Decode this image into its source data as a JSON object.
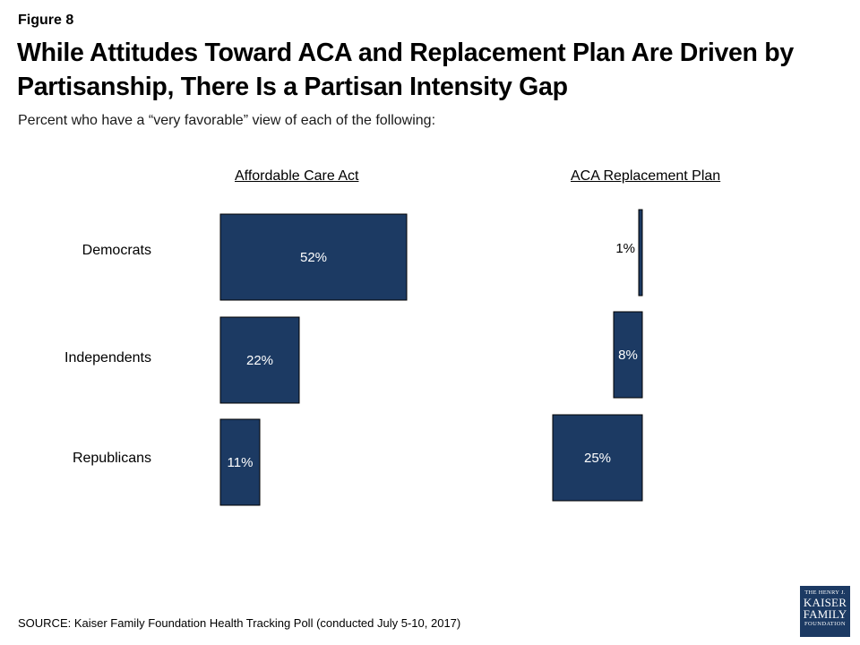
{
  "figure_label": "Figure 8",
  "title": "While Attitudes Toward ACA and Replacement Plan Are Driven by Partisanship, There Is a Partisan Intensity Gap",
  "subtitle": "Percent who have a “very favorable” view of each of the following:",
  "source": "SOURCE: Kaiser Family Foundation Health Tracking Poll (conducted July 5-10, 2017)",
  "logo": {
    "line1": "THE HENRY J.",
    "line2": "KAISER",
    "line3": "FAMILY",
    "line4": "FOUNDATION"
  },
  "colors": {
    "bar": "#1c3a63",
    "bar_label": "#ffffff",
    "outside_label": "#000000"
  },
  "chart_data": [
    {
      "type": "bar",
      "orientation": "horizontal",
      "direction": "left-to-right",
      "title": "Affordable Care Act",
      "categories": [
        "Democrats",
        "Independents",
        "Republicans"
      ],
      "values": [
        52,
        22,
        11
      ],
      "value_labels": [
        "52%",
        "22%",
        "11%"
      ],
      "unit": "%"
    },
    {
      "type": "bar",
      "orientation": "horizontal",
      "direction": "right-to-left",
      "title": "ACA Replacement Plan",
      "categories": [
        "Democrats",
        "Independents",
        "Republicans"
      ],
      "values": [
        1,
        8,
        25
      ],
      "value_labels": [
        "1%",
        "8%",
        "25%"
      ],
      "unit": "%"
    }
  ]
}
